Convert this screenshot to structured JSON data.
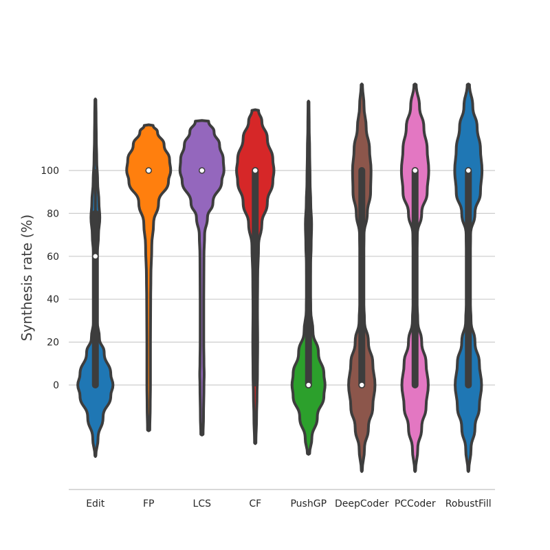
{
  "chart_data": {
    "type": "violin",
    "title": "",
    "xlabel": "",
    "ylabel": "Synthesis rate (%)",
    "ylim": [
      -49,
      126
    ],
    "yticks": [
      0,
      20,
      40,
      60,
      80,
      100
    ],
    "grid": "horizontal",
    "categories": [
      "Edit",
      "FP",
      "LCS",
      "CF",
      "PushGP",
      "DeepCoder",
      "PCCoder",
      "RobustFill"
    ],
    "violins": [
      {
        "category": "Edit",
        "color": "#1f77b4",
        "median": 60,
        "q1": 0,
        "q3": 80,
        "whisker_low": 0,
        "whisker_high": 100,
        "kde_min": -33,
        "kde_max": 133,
        "profile": [
          [
            -33,
            0.02
          ],
          [
            -25,
            0.12
          ],
          [
            -15,
            0.35
          ],
          [
            -5,
            0.7
          ],
          [
            0,
            0.8
          ],
          [
            5,
            0.7
          ],
          [
            15,
            0.4
          ],
          [
            22,
            0.18
          ],
          [
            30,
            0.08
          ],
          [
            40,
            0.06
          ],
          [
            50,
            0.06
          ],
          [
            60,
            0.08
          ],
          [
            70,
            0.14
          ],
          [
            78,
            0.2
          ],
          [
            85,
            0.16
          ],
          [
            95,
            0.1
          ],
          [
            105,
            0.06
          ],
          [
            115,
            0.04
          ],
          [
            125,
            0.03
          ],
          [
            133,
            0.02
          ]
        ]
      },
      {
        "category": "FP",
        "color": "#ff7f0e",
        "median": 100,
        "q1": 100,
        "q3": 100,
        "whisker_low": 100,
        "whisker_high": 100,
        "kde_min": -21,
        "kde_max": 121,
        "profile": [
          [
            -21,
            0.05
          ],
          [
            -10,
            0.07
          ],
          [
            0,
            0.08
          ],
          [
            20,
            0.08
          ],
          [
            40,
            0.09
          ],
          [
            50,
            0.1
          ],
          [
            65,
            0.14
          ],
          [
            75,
            0.22
          ],
          [
            85,
            0.45
          ],
          [
            95,
            0.9
          ],
          [
            100,
            1.0
          ],
          [
            105,
            0.95
          ],
          [
            112,
            0.7
          ],
          [
            118,
            0.4
          ],
          [
            121,
            0.2
          ]
        ]
      },
      {
        "category": "LCS",
        "color": "#9467bd",
        "median": 100,
        "q1": 100,
        "q3": 100,
        "whisker_low": 100,
        "whisker_high": 100,
        "kde_min": -23,
        "kde_max": 123,
        "profile": [
          [
            -23,
            0.05
          ],
          [
            -15,
            0.07
          ],
          [
            0,
            0.09
          ],
          [
            5,
            0.1
          ],
          [
            10,
            0.09
          ],
          [
            20,
            0.08
          ],
          [
            40,
            0.08
          ],
          [
            60,
            0.09
          ],
          [
            70,
            0.12
          ],
          [
            78,
            0.25
          ],
          [
            85,
            0.5
          ],
          [
            95,
            0.9
          ],
          [
            100,
            1.0
          ],
          [
            105,
            0.97
          ],
          [
            112,
            0.8
          ],
          [
            118,
            0.55
          ],
          [
            123,
            0.3
          ]
        ]
      },
      {
        "category": "CF",
        "color": "#d62728",
        "median": 100,
        "q1": 50,
        "q3": 100,
        "whisker_low": 0,
        "whisker_high": 100,
        "kde_min": -27,
        "kde_max": 128,
        "profile": [
          [
            -27,
            0.03
          ],
          [
            -15,
            0.06
          ],
          [
            -5,
            0.08
          ],
          [
            5,
            0.1
          ],
          [
            20,
            0.11
          ],
          [
            35,
            0.1
          ],
          [
            50,
            0.11
          ],
          [
            65,
            0.15
          ],
          [
            75,
            0.3
          ],
          [
            85,
            0.55
          ],
          [
            95,
            0.8
          ],
          [
            100,
            0.85
          ],
          [
            105,
            0.8
          ],
          [
            115,
            0.55
          ],
          [
            123,
            0.3
          ],
          [
            128,
            0.15
          ]
        ]
      },
      {
        "category": "PushGP",
        "color": "#2ca02c",
        "median": 0,
        "q1": 0,
        "q3": 80,
        "whisker_low": 0,
        "whisker_high": 100,
        "kde_min": -32,
        "kde_max": 132,
        "profile": [
          [
            -32,
            0.05
          ],
          [
            -25,
            0.15
          ],
          [
            -15,
            0.4
          ],
          [
            -5,
            0.7
          ],
          [
            0,
            0.75
          ],
          [
            5,
            0.7
          ],
          [
            15,
            0.45
          ],
          [
            25,
            0.2
          ],
          [
            35,
            0.1
          ],
          [
            45,
            0.08
          ],
          [
            55,
            0.09
          ],
          [
            65,
            0.12
          ],
          [
            75,
            0.14
          ],
          [
            85,
            0.1
          ],
          [
            95,
            0.07
          ],
          [
            110,
            0.05
          ],
          [
            120,
            0.03
          ],
          [
            132,
            0.02
          ]
        ]
      },
      {
        "category": "DeepCoder",
        "color": "#8c564b",
        "median": 0,
        "q1": 0,
        "q3": 100,
        "whisker_low": 0,
        "whisker_high": 100,
        "kde_min": -40,
        "kde_max": 140,
        "profile": [
          [
            -40,
            0.02
          ],
          [
            -30,
            0.12
          ],
          [
            -20,
            0.3
          ],
          [
            -10,
            0.5
          ],
          [
            0,
            0.6
          ],
          [
            10,
            0.5
          ],
          [
            20,
            0.3
          ],
          [
            30,
            0.12
          ],
          [
            40,
            0.08
          ],
          [
            60,
            0.08
          ],
          [
            70,
            0.1
          ],
          [
            80,
            0.25
          ],
          [
            90,
            0.4
          ],
          [
            100,
            0.42
          ],
          [
            110,
            0.35
          ],
          [
            120,
            0.2
          ],
          [
            130,
            0.1
          ],
          [
            140,
            0.03
          ]
        ]
      },
      {
        "category": "PCCoder",
        "color": "#e377c2",
        "median": 100,
        "q1": 0,
        "q3": 100,
        "whisker_low": 0,
        "whisker_high": 100,
        "kde_min": -40,
        "kde_max": 140,
        "profile": [
          [
            -40,
            0.02
          ],
          [
            -30,
            0.12
          ],
          [
            -20,
            0.3
          ],
          [
            -10,
            0.5
          ],
          [
            0,
            0.6
          ],
          [
            10,
            0.5
          ],
          [
            20,
            0.3
          ],
          [
            30,
            0.12
          ],
          [
            40,
            0.08
          ],
          [
            60,
            0.08
          ],
          [
            70,
            0.1
          ],
          [
            80,
            0.3
          ],
          [
            90,
            0.55
          ],
          [
            100,
            0.62
          ],
          [
            110,
            0.55
          ],
          [
            120,
            0.4
          ],
          [
            130,
            0.2
          ],
          [
            140,
            0.05
          ]
        ]
      },
      {
        "category": "RobustFill",
        "color": "#1f77b4",
        "median": 100,
        "q1": 0,
        "q3": 100,
        "whisker_low": 0,
        "whisker_high": 100,
        "kde_min": -40,
        "kde_max": 140,
        "profile": [
          [
            -40,
            0.02
          ],
          [
            -30,
            0.12
          ],
          [
            -20,
            0.3
          ],
          [
            -10,
            0.5
          ],
          [
            0,
            0.6
          ],
          [
            10,
            0.5
          ],
          [
            20,
            0.3
          ],
          [
            30,
            0.12
          ],
          [
            40,
            0.08
          ],
          [
            60,
            0.08
          ],
          [
            70,
            0.1
          ],
          [
            80,
            0.3
          ],
          [
            90,
            0.55
          ],
          [
            100,
            0.62
          ],
          [
            110,
            0.55
          ],
          [
            120,
            0.4
          ],
          [
            130,
            0.2
          ],
          [
            140,
            0.05
          ]
        ]
      }
    ]
  }
}
